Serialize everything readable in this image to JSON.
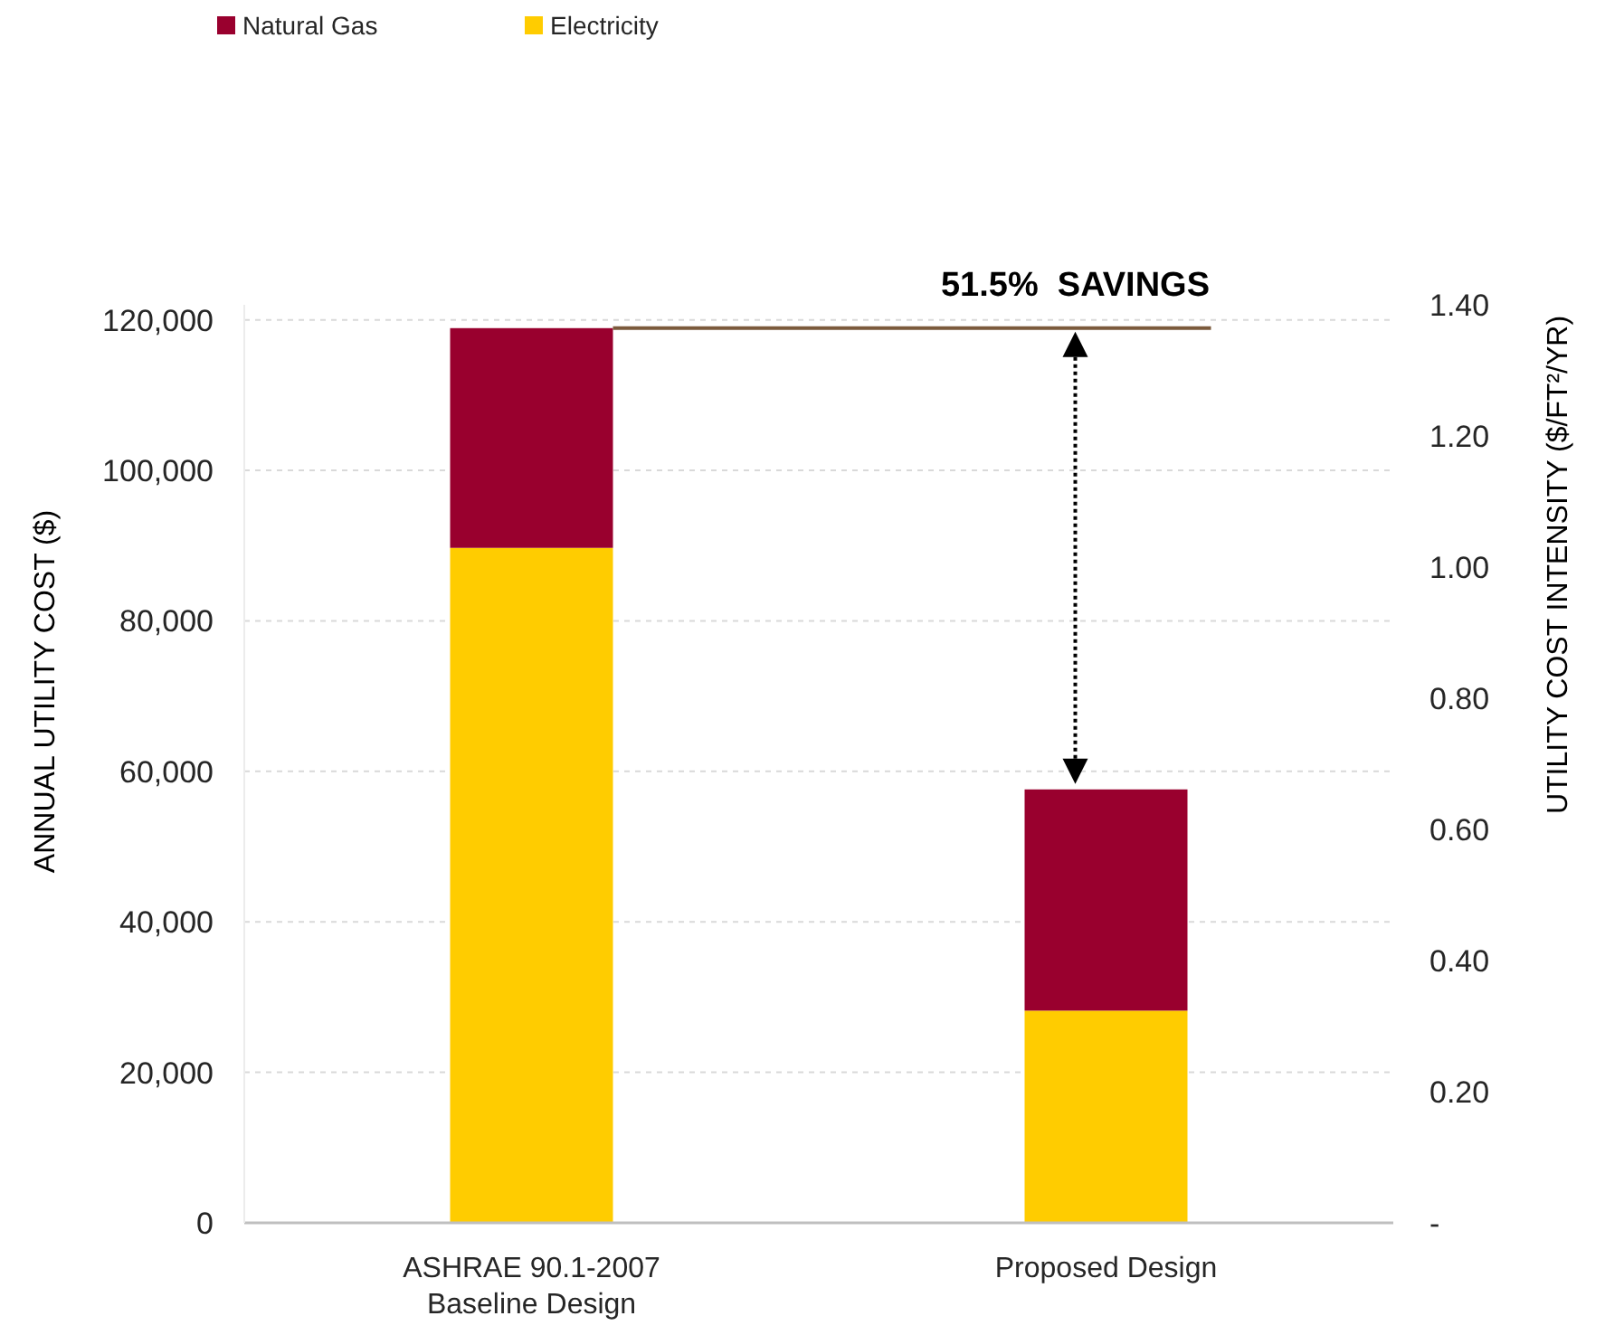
{
  "chart_data": {
    "type": "bar",
    "stacked": true,
    "categories": [
      "ASHRAE 90.1-2007\nBaseline Design",
      "Proposed Design"
    ],
    "series": [
      {
        "name": "Electricity",
        "color": "#ffcc00",
        "values": [
          89700,
          28200
        ]
      },
      {
        "name": "Natural Gas",
        "color": "#99002e",
        "values": [
          29200,
          29400
        ]
      }
    ],
    "ylabel": "ANNUAL UTILITY COST ($)",
    "y2label": "UTILITY COST INTENSITY ($/FT²/YR)",
    "ylim": [
      0,
      122000
    ],
    "yticks": [
      0,
      {
        "value": 20000,
        "label": "20,000"
      },
      {
        "value": 40000,
        "label": "40,000"
      },
      {
        "value": 60000,
        "label": "60,000"
      },
      {
        "value": 80000,
        "label": "80,000"
      },
      {
        "value": 100000,
        "label": "100,000"
      },
      {
        "value": 120000,
        "label": "120,000"
      }
    ],
    "y2lim": [
      0,
      1.4
    ],
    "y2ticks": [
      {
        "value": 0,
        "label": "-"
      },
      {
        "value": 0.2,
        "label": "0.20"
      },
      {
        "value": 0.4,
        "label": "0.40"
      },
      {
        "value": 0.6,
        "label": "0.60"
      },
      {
        "value": 0.8,
        "label": "0.80"
      },
      {
        "value": 1,
        "label": "1.00"
      },
      {
        "value": 1.2,
        "label": "1.20"
      },
      {
        "value": 1.4,
        "label": "1.40"
      }
    ],
    "ref_lines": [
      {
        "axis": "y",
        "value": 118900,
        "color": "#7b5a3c"
      }
    ],
    "annotations": [
      "51.5%  SAVINGS"
    ],
    "grid": "y",
    "legend": "top left"
  }
}
